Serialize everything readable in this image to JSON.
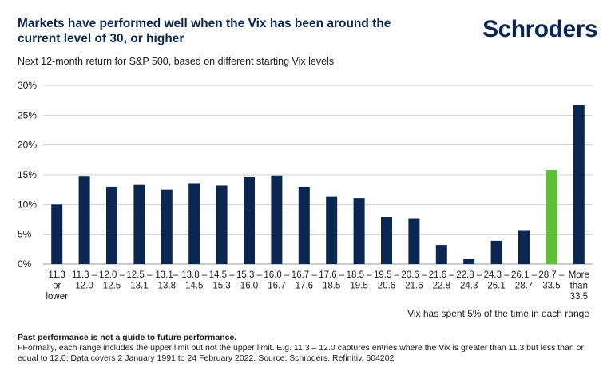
{
  "header": {
    "title": "Markets have performed well when the Vix has been around the current level of 30, or higher",
    "logo": "Schroders",
    "subtitle": "Next 12-month return for S&P 500, based on different starting Vix levels"
  },
  "note": "Vix has spent 5% of the time in each range",
  "footer": {
    "disclaimer": "Past performance is not a guide to future performance.",
    "text": "FFormally, each range includes the upper limit but not the upper limit. E.g. 11.3 – 12.0 captures entries where the Vix is greater than 11.3 but less than or equal to 12.0. Data covers 2 January 1991 to 24 February 2022. Source: Schroders, Refinitiv. 604202"
  },
  "colors": {
    "bar": "#0b2651",
    "highlight": "#5cbf36",
    "grid": "#cfcfcf"
  },
  "chart_data": {
    "type": "bar",
    "title": "Next 12-month return for S&P 500, based on different starting Vix levels",
    "categories": [
      "11.3 or lower",
      "11.3 – 12.0",
      "12.0 – 12.5",
      "12.5 – 13.1",
      "13.1– 13.8",
      "13.8 – 14.5",
      "14.5 – 15.3",
      "15.3 – 16.0",
      "16.0 – 16.7",
      "16.7 – 17.6",
      "17.6 – 18.5",
      "18.5 – 19.5",
      "19.5 – 20.6",
      "20.6 – 21.6",
      "21.6 – 22.8",
      "22.8 – 24.3",
      "24.3 – 26.1",
      "26.1 – 28.7",
      "28.7 – 33.5",
      "More than 33.5"
    ],
    "category_lines": [
      [
        "11.3",
        "or",
        "lower"
      ],
      [
        "11.3 –",
        "12.0"
      ],
      [
        "12.0 –",
        "12.5"
      ],
      [
        "12.5 –",
        "13.1"
      ],
      [
        "13.1–",
        "13.8"
      ],
      [
        "13.8 –",
        "14.5"
      ],
      [
        "14.5 –",
        "15.3"
      ],
      [
        "15.3 –",
        "16.0"
      ],
      [
        "16.0 –",
        "16.7"
      ],
      [
        "16.7 –",
        "17.6"
      ],
      [
        "17.6 –",
        "18.5"
      ],
      [
        "18.5 –",
        "19.5"
      ],
      [
        "19.5 –",
        "20.6"
      ],
      [
        "20.6 –",
        "21.6"
      ],
      [
        "21.6 –",
        "22.8"
      ],
      [
        "22.8 –",
        "24.3"
      ],
      [
        "24.3 –",
        "26.1"
      ],
      [
        "26.1 –",
        "28.7"
      ],
      [
        "28.7 –",
        "33.5"
      ],
      [
        "More",
        "than",
        "33.5"
      ]
    ],
    "values": [
      10.0,
      14.7,
      13.0,
      13.3,
      12.5,
      13.6,
      13.2,
      14.6,
      14.9,
      13.0,
      11.3,
      11.1,
      7.9,
      7.7,
      3.2,
      0.9,
      3.9,
      5.7,
      15.8,
      26.7
    ],
    "highlight_index": 18,
    "ylim": [
      0,
      30
    ],
    "yticks": [
      0,
      5,
      10,
      15,
      20,
      25,
      30
    ],
    "ytick_format": "%",
    "xlabel": "",
    "ylabel": "",
    "grid": true
  }
}
